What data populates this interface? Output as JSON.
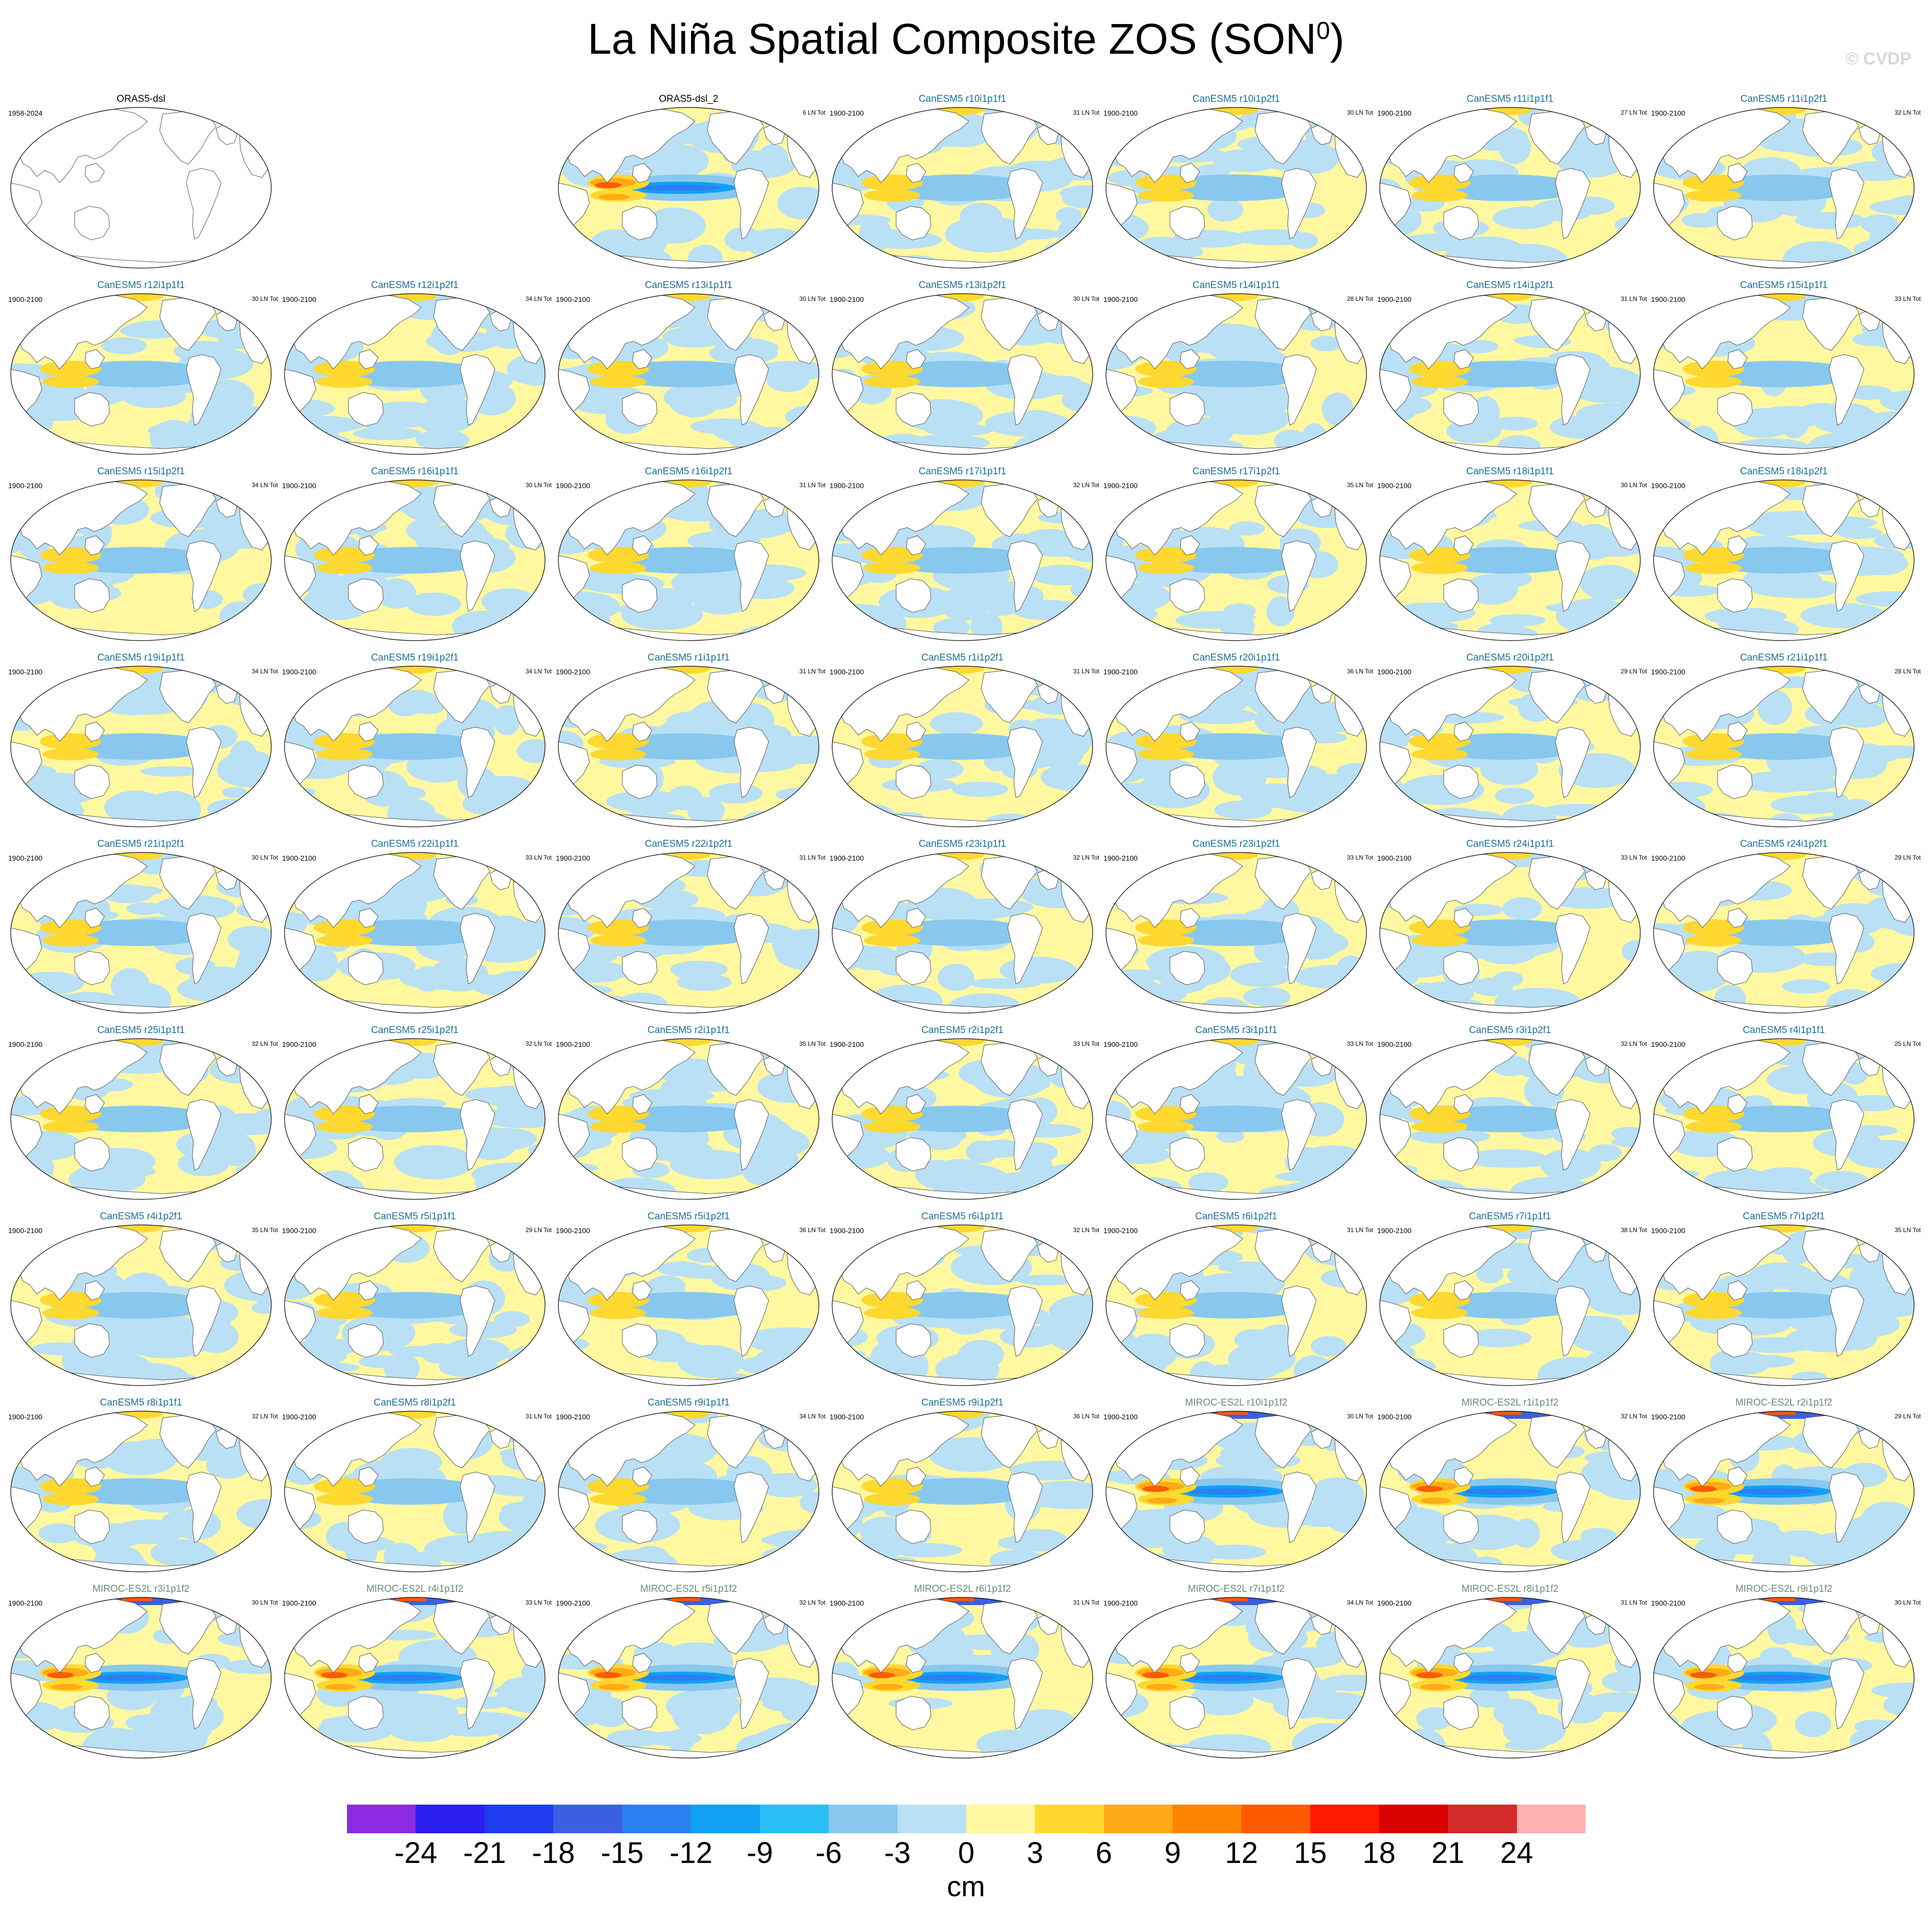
{
  "title": "La Niña Spatial Composite ZOS (SON",
  "title_superscript": "0",
  "title_close": ")",
  "copyright": "© CVDP",
  "colorbar": {
    "units": "cm",
    "labels": [
      "-24",
      "-21",
      "-18",
      "-15",
      "-12",
      "-9",
      "-6",
      "-3",
      "0",
      "3",
      "6",
      "9",
      "12",
      "15",
      "18",
      "21",
      "24"
    ],
    "colors": [
      "#8a2be2",
      "#2a1ef0",
      "#1e3cf0",
      "#3a60e0",
      "#2a80f0",
      "#12a0f5",
      "#28bff5",
      "#88c8ee",
      "#b9e0f5",
      "#fff8a0",
      "#ffd830",
      "#ffaa18",
      "#ff8400",
      "#ff5a00",
      "#ff1a00",
      "#d80000",
      "#d42a2a",
      "#ffb0b0"
    ]
  },
  "chart_data": {
    "type": "heatmap",
    "variable": "ZOS",
    "season": "SON0",
    "units": "cm",
    "levels": [
      -24,
      -21,
      -18,
      -15,
      -12,
      -9,
      -6,
      -3,
      0,
      3,
      6,
      9,
      12,
      15,
      18,
      21,
      24
    ],
    "panels": [
      {
        "name": "ORAS5-dsl",
        "years": "1958-2024",
        "count": "",
        "model": "obs",
        "empty": true
      },
      {
        "name": "",
        "years": "",
        "count": "",
        "model": "none",
        "empty": true,
        "blank": true
      },
      {
        "name": "ORAS5-dsl_2",
        "years": "",
        "count": "6 LN Tot",
        "model": "obs2"
      },
      {
        "name": "CanESM5 r10i1p1f1",
        "years": "1900-2100",
        "count": "31 LN Tot",
        "model": "can"
      },
      {
        "name": "CanESM5 r10i1p2f1",
        "years": "1900-2100",
        "count": "30 LN Tot",
        "model": "can"
      },
      {
        "name": "CanESM5 r11i1p1f1",
        "years": "1900-2100",
        "count": "27 LN Tot",
        "model": "can"
      },
      {
        "name": "CanESM5 r11i1p2f1",
        "years": "1900-2100",
        "count": "32 LN Tot",
        "model": "can"
      },
      {
        "name": "CanESM5 r12i1p1f1",
        "years": "1900-2100",
        "count": "30 LN Tot",
        "model": "can"
      },
      {
        "name": "CanESM5 r12i1p2f1",
        "years": "1900-2100",
        "count": "34 LN Tot",
        "model": "can"
      },
      {
        "name": "CanESM5 r13i1p1f1",
        "years": "1900-2100",
        "count": "30 LN Tot",
        "model": "can"
      },
      {
        "name": "CanESM5 r13i1p2f1",
        "years": "1900-2100",
        "count": "30 LN Tot",
        "model": "can"
      },
      {
        "name": "CanESM5 r14i1p1f1",
        "years": "1900-2100",
        "count": "28 LN Tot",
        "model": "can"
      },
      {
        "name": "CanESM5 r14i1p2f1",
        "years": "1900-2100",
        "count": "31 LN Tot",
        "model": "can"
      },
      {
        "name": "CanESM5 r15i1p1f1",
        "years": "1900-2100",
        "count": "33 LN Tot",
        "model": "can"
      },
      {
        "name": "CanESM5 r15i1p2f1",
        "years": "1900-2100",
        "count": "34 LN Tot",
        "model": "can"
      },
      {
        "name": "CanESM5 r16i1p1f1",
        "years": "1900-2100",
        "count": "30 LN Tot",
        "model": "can"
      },
      {
        "name": "CanESM5 r16i1p2f1",
        "years": "1900-2100",
        "count": "31 LN Tot",
        "model": "can"
      },
      {
        "name": "CanESM5 r17i1p1f1",
        "years": "1900-2100",
        "count": "32 LN Tot",
        "model": "can"
      },
      {
        "name": "CanESM5 r17i1p2f1",
        "years": "1900-2100",
        "count": "35 LN Tot",
        "model": "can"
      },
      {
        "name": "CanESM5 r18i1p1f1",
        "years": "1900-2100",
        "count": "30 LN Tot",
        "model": "can"
      },
      {
        "name": "CanESM5 r18i1p2f1",
        "years": "1900-2100",
        "count": "",
        "model": "can"
      },
      {
        "name": "CanESM5 r19i1p1f1",
        "years": "1900-2100",
        "count": "34 LN Tot",
        "model": "can"
      },
      {
        "name": "CanESM5 r19i1p2f1",
        "years": "1900-2100",
        "count": "34 LN Tot",
        "model": "can"
      },
      {
        "name": "CanESM5 r1i1p1f1",
        "years": "1900-2100",
        "count": "31 LN Tot",
        "model": "can"
      },
      {
        "name": "CanESM5 r1i1p2f1",
        "years": "1900-2100",
        "count": "31 LN Tot",
        "model": "can"
      },
      {
        "name": "CanESM5 r20i1p1f1",
        "years": "1900-2100",
        "count": "36 LN Tot",
        "model": "can"
      },
      {
        "name": "CanESM5 r20i1p2f1",
        "years": "1900-2100",
        "count": "29 LN Tot",
        "model": "can"
      },
      {
        "name": "CanESM5 r21i1p1f1",
        "years": "1900-2100",
        "count": "28 LN Tot",
        "model": "can"
      },
      {
        "name": "CanESM5 r21i1p2f1",
        "years": "1900-2100",
        "count": "30 LN Tot",
        "model": "can"
      },
      {
        "name": "CanESM5 r22i1p1f1",
        "years": "1900-2100",
        "count": "33 LN Tot",
        "model": "can"
      },
      {
        "name": "CanESM5 r22i1p2f1",
        "years": "1900-2100",
        "count": "31 LN Tot",
        "model": "can"
      },
      {
        "name": "CanESM5 r23i1p1f1",
        "years": "1900-2100",
        "count": "32 LN Tot",
        "model": "can"
      },
      {
        "name": "CanESM5 r23i1p2f1",
        "years": "1900-2100",
        "count": "33 LN Tot",
        "model": "can"
      },
      {
        "name": "CanESM5 r24i1p1f1",
        "years": "1900-2100",
        "count": "33 LN Tot",
        "model": "can"
      },
      {
        "name": "CanESM5 r24i1p2f1",
        "years": "1900-2100",
        "count": "29 LN Tot",
        "model": "can"
      },
      {
        "name": "CanESM5 r25i1p1f1",
        "years": "1900-2100",
        "count": "32 LN Tot",
        "model": "can"
      },
      {
        "name": "CanESM5 r25i1p2f1",
        "years": "1900-2100",
        "count": "32 LN Tot",
        "model": "can"
      },
      {
        "name": "CanESM5 r2i1p1f1",
        "years": "1900-2100",
        "count": "35 LN Tot",
        "model": "can"
      },
      {
        "name": "CanESM5 r2i1p2f1",
        "years": "1900-2100",
        "count": "33 LN Tot",
        "model": "can"
      },
      {
        "name": "CanESM5 r3i1p1f1",
        "years": "1900-2100",
        "count": "33 LN Tot",
        "model": "can"
      },
      {
        "name": "CanESM5 r3i1p2f1",
        "years": "1900-2100",
        "count": "32 LN Tot",
        "model": "can"
      },
      {
        "name": "CanESM5 r4i1p1f1",
        "years": "1900-2100",
        "count": "25 LN Tot",
        "model": "can"
      },
      {
        "name": "CanESM5 r4i1p2f1",
        "years": "1900-2100",
        "count": "35 LN Tot",
        "model": "can"
      },
      {
        "name": "CanESM5 r5i1p1f1",
        "years": "1900-2100",
        "count": "29 LN Tot",
        "model": "can"
      },
      {
        "name": "CanESM5 r5i1p2f1",
        "years": "1900-2100",
        "count": "36 LN Tot",
        "model": "can"
      },
      {
        "name": "CanESM5 r6i1p1f1",
        "years": "1900-2100",
        "count": "32 LN Tot",
        "model": "can"
      },
      {
        "name": "CanESM5 r6i1p2f1",
        "years": "1900-2100",
        "count": "31 LN Tot",
        "model": "can"
      },
      {
        "name": "CanESM5 r7i1p1f1",
        "years": "1900-2100",
        "count": "38 LN Tot",
        "model": "can"
      },
      {
        "name": "CanESM5 r7i1p2f1",
        "years": "1900-2100",
        "count": "35 LN Tot",
        "model": "can"
      },
      {
        "name": "CanESM5 r8i1p1f1",
        "years": "1900-2100",
        "count": "32 LN Tot",
        "model": "can"
      },
      {
        "name": "CanESM5 r8i1p2f1",
        "years": "1900-2100",
        "count": "31 LN Tot",
        "model": "can"
      },
      {
        "name": "CanESM5 r9i1p1f1",
        "years": "1900-2100",
        "count": "34 LN Tot",
        "model": "can"
      },
      {
        "name": "CanESM5 r9i1p2f1",
        "years": "1900-2100",
        "count": "36 LN Tot",
        "model": "can"
      },
      {
        "name": "MIROC-ES2L r10i1p1f2",
        "years": "1900-2100",
        "count": "30 LN Tot",
        "model": "miroc"
      },
      {
        "name": "MIROC-ES2L r1i1p1f2",
        "years": "1900-2100",
        "count": "32 LN Tot",
        "model": "miroc"
      },
      {
        "name": "MIROC-ES2L r2i1p1f2",
        "years": "1900-2100",
        "count": "29 LN Tot",
        "model": "miroc"
      },
      {
        "name": "MIROC-ES2L r3i1p1f2",
        "years": "1900-2100",
        "count": "30 LN Tot",
        "model": "miroc"
      },
      {
        "name": "MIROC-ES2L r4i1p1f2",
        "years": "1900-2100",
        "count": "33 LN Tot",
        "model": "miroc"
      },
      {
        "name": "MIROC-ES2L r5i1p1f2",
        "years": "1900-2100",
        "count": "32 LN Tot",
        "model": "miroc"
      },
      {
        "name": "MIROC-ES2L r6i1p1f2",
        "years": "1900-2100",
        "count": "31 LN Tot",
        "model": "miroc"
      },
      {
        "name": "MIROC-ES2L r7i1p1f2",
        "years": "1900-2100",
        "count": "34 LN Tot",
        "model": "miroc"
      },
      {
        "name": "MIROC-ES2L r8i1p1f2",
        "years": "1900-2100",
        "count": "31 LN Tot",
        "model": "miroc"
      },
      {
        "name": "MIROC-ES2L r9i1p1f2",
        "years": "1900-2100",
        "count": "30 LN Tot",
        "model": "miroc"
      }
    ],
    "title_colors": {
      "obs": "#000000",
      "obs2": "#000000",
      "can": "#1a6f9a",
      "miroc": "#6a8a7a"
    }
  }
}
